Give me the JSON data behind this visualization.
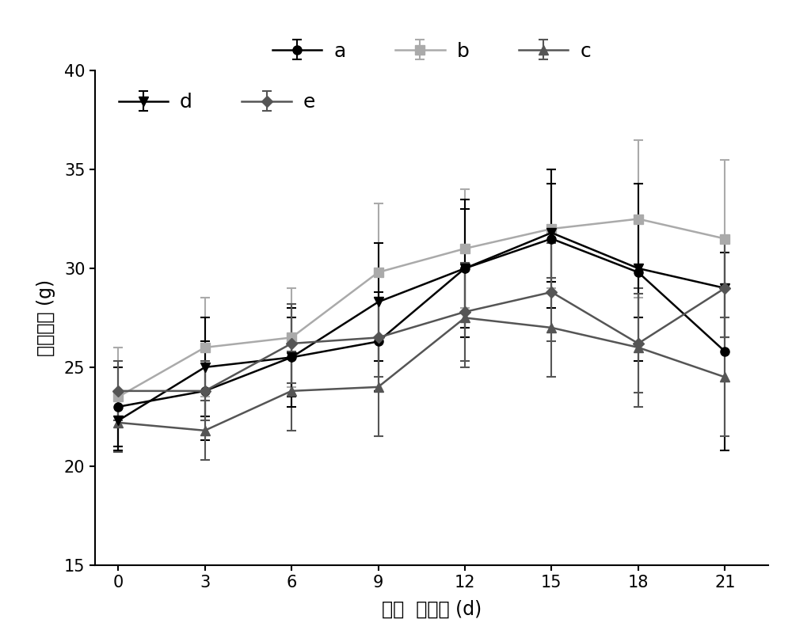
{
  "x": [
    0,
    3,
    6,
    9,
    12,
    15,
    18,
    21
  ],
  "series": [
    {
      "key": "a",
      "y": [
        23.0,
        23.8,
        25.5,
        26.3,
        30.0,
        31.5,
        29.8,
        25.8
      ],
      "err": [
        2.0,
        2.5,
        2.0,
        2.5,
        3.5,
        3.5,
        4.5,
        5.0
      ],
      "color": "#000000",
      "marker": "o",
      "markersize": 8,
      "label": "a"
    },
    {
      "key": "b",
      "y": [
        23.5,
        26.0,
        26.5,
        29.8,
        31.0,
        32.0,
        32.5,
        31.5
      ],
      "err": [
        2.5,
        2.5,
        2.5,
        3.5,
        3.0,
        3.0,
        4.0,
        4.0
      ],
      "color": "#aaaaaa",
      "marker": "s",
      "markersize": 9,
      "label": "b"
    },
    {
      "key": "c",
      "y": [
        22.2,
        21.8,
        23.8,
        24.0,
        27.5,
        27.0,
        26.0,
        24.5
      ],
      "err": [
        1.5,
        1.5,
        2.0,
        2.5,
        2.5,
        2.5,
        3.0,
        3.0
      ],
      "color": "#555555",
      "marker": "^",
      "markersize": 9,
      "label": "c"
    },
    {
      "key": "d",
      "y": [
        22.3,
        25.0,
        25.5,
        28.3,
        30.0,
        31.8,
        30.0,
        29.0
      ],
      "err": [
        1.5,
        2.5,
        2.5,
        3.0,
        3.0,
        2.5,
        2.5,
        2.5
      ],
      "color": "#000000",
      "marker": "v",
      "markersize": 9,
      "label": "d"
    },
    {
      "key": "e",
      "y": [
        23.8,
        23.8,
        26.2,
        26.5,
        27.8,
        28.8,
        26.2,
        29.0
      ],
      "err": [
        1.5,
        1.5,
        2.0,
        2.0,
        2.5,
        2.5,
        2.5,
        2.5
      ],
      "color": "#555555",
      "marker": "D",
      "markersize": 7,
      "label": "e"
    }
  ],
  "xlabel": "给药  后时间 (d)",
  "ylabel": "小鼠体重 (g)",
  "xlim": [
    -0.8,
    22.5
  ],
  "ylim": [
    15,
    40
  ],
  "yticks": [
    15,
    20,
    25,
    30,
    35,
    40
  ],
  "xticks": [
    0,
    3,
    6,
    9,
    12,
    15,
    18,
    21
  ],
  "capsize": 4,
  "linewidth": 1.8,
  "capthick": 1.5,
  "elinewidth": 1.5,
  "legend_row1": [
    "a",
    "b",
    "c"
  ],
  "legend_row2": [
    "d",
    "e"
  ]
}
